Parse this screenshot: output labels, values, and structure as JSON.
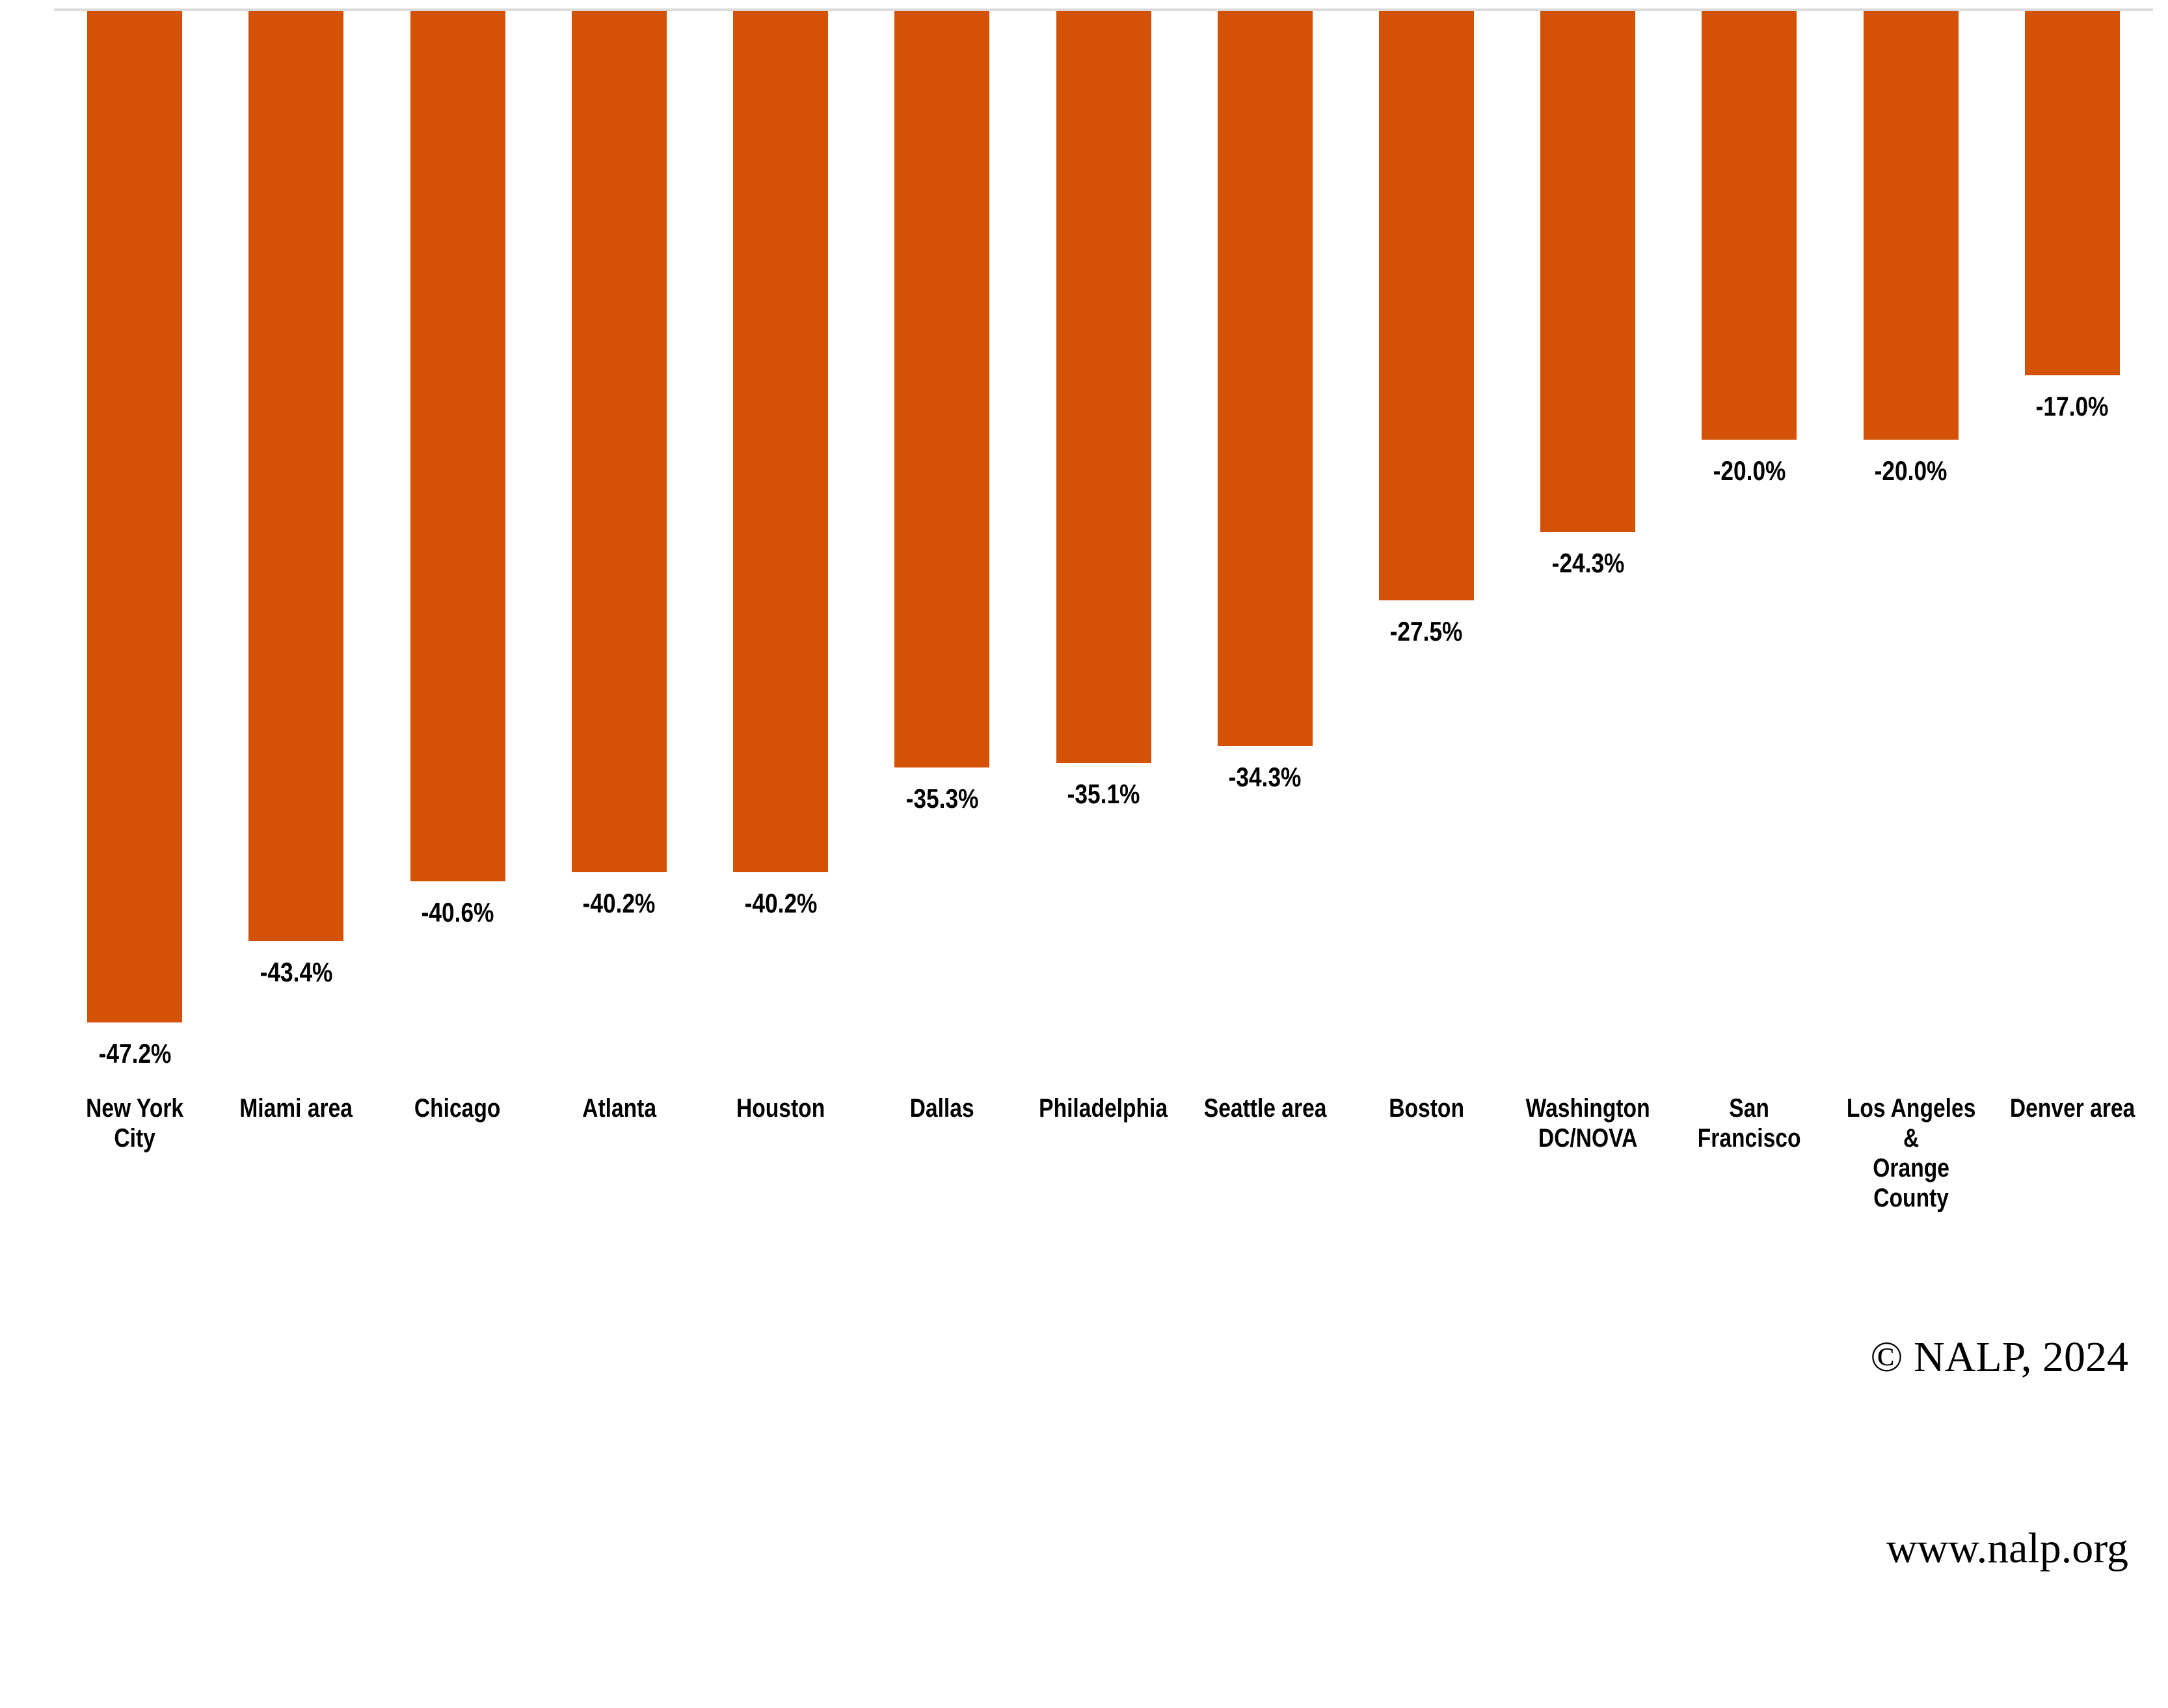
{
  "chart_data": {
    "type": "bar",
    "title": "",
    "xlabel": "",
    "ylabel": "",
    "orientation": "vertical-negative-from-zero-baseline",
    "baseline": 0,
    "ylim": [
      -50,
      0
    ],
    "grid": false,
    "legend": false,
    "value_axis_visible": false,
    "categories": [
      "New York City",
      "Miami area",
      "Chicago",
      "Atlanta",
      "Houston",
      "Dallas",
      "Philadelphia",
      "Seattle area",
      "Boston",
      "Washington\nDC/NOVA",
      "San Francisco",
      "Los Angeles &\nOrange County",
      "Denver area"
    ],
    "values": [
      -47.2,
      -43.4,
      -40.6,
      -40.2,
      -40.2,
      -35.3,
      -35.1,
      -34.3,
      -27.5,
      -24.3,
      -20.0,
      -20.0,
      -17.0
    ],
    "value_labels": [
      "-47.2%",
      "-43.4%",
      "-40.6%",
      "-40.2%",
      "-40.2%",
      "-35.3%",
      "-35.1%",
      "-34.3%",
      "-27.5%",
      "-24.3%",
      "-20.0%",
      "-20.0%",
      "-17.0%"
    ],
    "bar_color": "#D35205",
    "axis_line_color": "#DBDBDB",
    "text_color": "#000000"
  },
  "footer": {
    "copyright": "© NALP, 2024",
    "website": "www.nalp.org"
  }
}
